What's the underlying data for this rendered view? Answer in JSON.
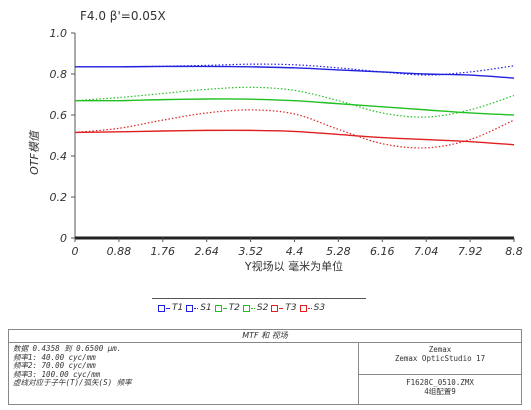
{
  "chart_data": {
    "type": "line",
    "title": "F4.0    β'=0.05X",
    "xlabel": "Y视场以 毫米为单位",
    "ylabel": "OTF模值",
    "xlim": [
      0,
      8.8
    ],
    "ylim": [
      0,
      1.0
    ],
    "x_ticks": [
      "0",
      "0.88",
      "1.76",
      "2.64",
      "3.52",
      "4.4",
      "5.28",
      "6.16",
      "7.04",
      "7.92",
      "8.8"
    ],
    "y_ticks": [
      "0",
      "0.2",
      "0.4",
      "0.6",
      "0.8",
      "1.0"
    ],
    "grid": false,
    "x": [
      0,
      0.88,
      1.76,
      2.64,
      3.52,
      4.4,
      5.28,
      6.16,
      7.04,
      7.92,
      8.8
    ],
    "series": [
      {
        "name": "T1",
        "color": "#2020e0",
        "style": "solid",
        "values": [
          0.835,
          0.835,
          0.837,
          0.837,
          0.835,
          0.83,
          0.82,
          0.81,
          0.8,
          0.795,
          0.78
        ]
      },
      {
        "name": "S1",
        "color": "#2020e0",
        "style": "dotted",
        "values": [
          0.835,
          0.835,
          0.838,
          0.842,
          0.848,
          0.845,
          0.83,
          0.81,
          0.795,
          0.81,
          0.84
        ]
      },
      {
        "name": "T2",
        "color": "#20c020",
        "style": "solid",
        "values": [
          0.67,
          0.67,
          0.675,
          0.678,
          0.677,
          0.67,
          0.655,
          0.64,
          0.625,
          0.61,
          0.6
        ]
      },
      {
        "name": "S2",
        "color": "#20c020",
        "style": "dotted",
        "values": [
          0.67,
          0.685,
          0.705,
          0.725,
          0.735,
          0.72,
          0.67,
          0.61,
          0.59,
          0.625,
          0.695
        ]
      },
      {
        "name": "T3",
        "color": "#e02020",
        "style": "solid",
        "values": [
          0.515,
          0.518,
          0.522,
          0.525,
          0.525,
          0.52,
          0.505,
          0.49,
          0.48,
          0.47,
          0.455
        ]
      },
      {
        "name": "S3",
        "color": "#e02020",
        "style": "dotted",
        "values": [
          0.515,
          0.535,
          0.575,
          0.61,
          0.625,
          0.605,
          0.53,
          0.46,
          0.44,
          0.48,
          0.575
        ]
      }
    ]
  },
  "legend": {
    "items": [
      {
        "label": "T1",
        "color": "#2020e0",
        "style": "solid"
      },
      {
        "label": "S1",
        "color": "#2020e0",
        "style": "dotted"
      },
      {
        "label": "T2",
        "color": "#20c020",
        "style": "solid"
      },
      {
        "label": "S2",
        "color": "#20c020",
        "style": "dotted"
      },
      {
        "label": "T3",
        "color": "#e02020",
        "style": "solid"
      },
      {
        "label": "S3",
        "color": "#e02020",
        "style": "dotted"
      }
    ]
  },
  "info": {
    "title": "MTF 和 视场",
    "left_lines": [
      "数据 0.4358 到 0.6500 μm.",
      "频率1:    40.00 cyc/mm",
      "频率2:    70.00 cyc/mm",
      "频率3:   100.00 cyc/mm",
      "虚线对应于子午(T)/弧矢(S) 频率"
    ],
    "right_top_lines": [
      "Zemax",
      "Zemax OpticStudio 17"
    ],
    "right_bottom_lines": [
      "F1628C_0510.ZMX",
      "4组配置9"
    ]
  }
}
